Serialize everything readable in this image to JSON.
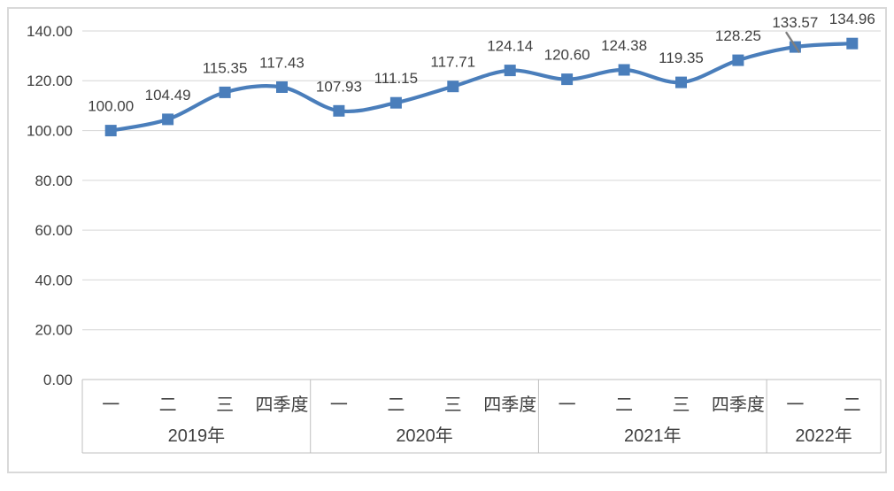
{
  "chart_data": {
    "type": "line",
    "title": "",
    "legend": "none",
    "grid": true,
    "smooth": true,
    "marker": "square",
    "ylim": [
      0,
      140
    ],
    "ytick_step": 20,
    "ytick_labels": [
      "0.00",
      "20.00",
      "40.00",
      "60.00",
      "80.00",
      "100.00",
      "120.00",
      "140.00"
    ],
    "categories": [
      "一",
      "二",
      "三",
      "四季度",
      "一",
      "二",
      "三",
      "四季度",
      "一",
      "二",
      "三",
      "四季度",
      "一",
      "二"
    ],
    "groups": [
      {
        "year": "2019年",
        "quarters": [
          "一",
          "二",
          "三",
          "四季度"
        ]
      },
      {
        "year": "2020年",
        "quarters": [
          "一",
          "二",
          "三",
          "四季度"
        ]
      },
      {
        "year": "2021年",
        "quarters": [
          "一",
          "二",
          "三",
          "四季度"
        ]
      },
      {
        "year": "2022年",
        "quarters": [
          "一",
          "二"
        ]
      }
    ],
    "series": [
      {
        "name": "",
        "values": [
          100.0,
          104.49,
          115.35,
          117.43,
          107.93,
          111.15,
          117.71,
          124.14,
          120.6,
          124.38,
          119.35,
          128.25,
          133.57,
          134.96
        ]
      }
    ],
    "point_labels": [
      "100.00",
      "104.49",
      "115.35",
      "117.43",
      "107.93",
      "111.15",
      "117.71",
      "124.14",
      "120.60",
      "124.38",
      "119.35",
      "128.25",
      "133.57",
      "134.96"
    ],
    "colors": {
      "series_line": "#4a7ebb",
      "marker_fill": "#4a7ebb",
      "data_label_text": "#404040",
      "axis_tick_text": "#404040",
      "gridline": "#d6d6d6",
      "axis_line": "#bfbfbf",
      "category_divider": "#bfbfbf",
      "frame_border": "#d9d9d9",
      "background": "#ffffff"
    }
  }
}
